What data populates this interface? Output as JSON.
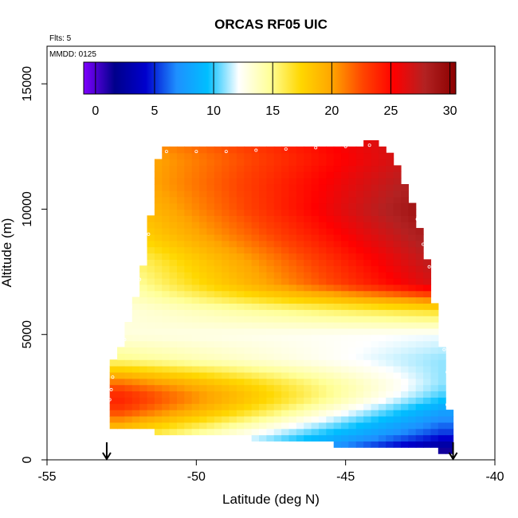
{
  "chart_data": {
    "type": "heatmap",
    "title": "ORCAS RF05 UIC",
    "annotations": {
      "flights": "Flts: 5",
      "date": "MMDD: 0125"
    },
    "xlabel": "Latitude (deg N)",
    "ylabel": "Altitude (m)",
    "xlim": [
      -55,
      -40
    ],
    "ylim": [
      0,
      16500
    ],
    "x_ticks": [
      -55,
      -50,
      -45,
      -40
    ],
    "x_tick_labels": [
      "-55",
      "-50",
      "-45",
      "-40"
    ],
    "y_ticks": [
      0,
      5000,
      10000,
      15000
    ],
    "y_tick_labels": [
      "0",
      "5000",
      "10000",
      "15000"
    ],
    "colorbar": {
      "range": [
        -1,
        30.5
      ],
      "ticks": [
        0,
        5,
        10,
        15,
        20,
        25,
        30
      ],
      "tick_labels": [
        "0",
        "5",
        "10",
        "15",
        "20",
        "25",
        "30"
      ],
      "colors": [
        "#7f00ff",
        "#00008b",
        "#0000cd",
        "#1e90ff",
        "#00bfff",
        "#ffffff",
        "#ffff99",
        "#ffd700",
        "#ffa500",
        "#ff4500",
        "#ff0000",
        "#b22222",
        "#8b0000"
      ],
      "position": "top"
    },
    "grid": false,
    "cell_size": {
      "lat": 0.25,
      "alt": 250
    },
    "domain_edges": {
      "lat": [
        -52.9,
        -52.6,
        -52.4,
        -52.1,
        -51.9,
        -51.7,
        -51.2,
        -50.6,
        -50.0,
        -49.0,
        -48.0,
        -47.0,
        -46.0,
        -45.0,
        -44.5,
        -44.0,
        -43.5,
        -43.1,
        -42.9,
        -42.6,
        -42.4,
        -42.2,
        -42.0,
        -41.8,
        -41.6,
        -41.5
      ],
      "alt_min": [
        1250,
        1250,
        1250,
        1250,
        1250,
        1250,
        1100,
        1100,
        1100,
        1100,
        850,
        850,
        850,
        500,
        500,
        500,
        500,
        500,
        500,
        500,
        500,
        500,
        500,
        200,
        200,
        200
      ],
      "alt_max": [
        4000,
        4000,
        5000,
        6000,
        7000,
        8000,
        12500,
        12500,
        12500,
        12500,
        12500,
        12500,
        12500,
        12500,
        12500,
        12700,
        12200,
        11200,
        10500,
        9500,
        8500,
        7500,
        6000,
        4500,
        3500,
        1500
      ]
    },
    "profiles": {
      "altitudes": [
        0,
        1000,
        2000,
        2500,
        3000,
        4000,
        5000,
        6000,
        7000,
        8000,
        9000,
        10000,
        11000,
        12000,
        12700
      ],
      "south_lat": -52.5,
      "south_values": [
        16,
        17,
        23,
        24,
        22,
        15,
        13,
        13,
        14,
        15,
        17,
        18,
        19,
        19,
        20
      ],
      "north_lat": -41.8,
      "north_values": [
        -1,
        5,
        8,
        10,
        11,
        11,
        12,
        17,
        27,
        28,
        29,
        30,
        29,
        28,
        28
      ]
    },
    "flight_track_markers": [
      {
        "lat": -52.9,
        "alt": 2400
      },
      {
        "lat": -52.85,
        "alt": 2800
      },
      {
        "lat": -52.8,
        "alt": 3300
      },
      {
        "lat": -52.4,
        "alt": 4800
      },
      {
        "lat": -52.2,
        "alt": 6100
      },
      {
        "lat": -51.9,
        "alt": 7200
      },
      {
        "lat": -51.6,
        "alt": 9000
      },
      {
        "lat": -51.5,
        "alt": 11400
      },
      {
        "lat": -51.0,
        "alt": 12300
      },
      {
        "lat": -50.0,
        "alt": 12300
      },
      {
        "lat": -49.0,
        "alt": 12300
      },
      {
        "lat": -48.0,
        "alt": 12350
      },
      {
        "lat": -47.0,
        "alt": 12400
      },
      {
        "lat": -46.0,
        "alt": 12450
      },
      {
        "lat": -45.0,
        "alt": 12500
      },
      {
        "lat": -44.2,
        "alt": 12550
      },
      {
        "lat": -43.6,
        "alt": 12600
      },
      {
        "lat": -43.2,
        "alt": 12100
      },
      {
        "lat": -43.0,
        "alt": 11300
      },
      {
        "lat": -42.8,
        "alt": 10500
      },
      {
        "lat": -42.6,
        "alt": 9600
      },
      {
        "lat": -42.4,
        "alt": 8600
      },
      {
        "lat": -42.2,
        "alt": 7700
      },
      {
        "lat": -42.0,
        "alt": 6600
      },
      {
        "lat": -41.8,
        "alt": 5200
      },
      {
        "lat": -41.7,
        "alt": 4400
      },
      {
        "lat": -41.6,
        "alt": 3500
      },
      {
        "lat": -41.6,
        "alt": 2200
      }
    ],
    "arrows": [
      {
        "lat": -53.0
      },
      {
        "lat": -41.4
      }
    ]
  }
}
